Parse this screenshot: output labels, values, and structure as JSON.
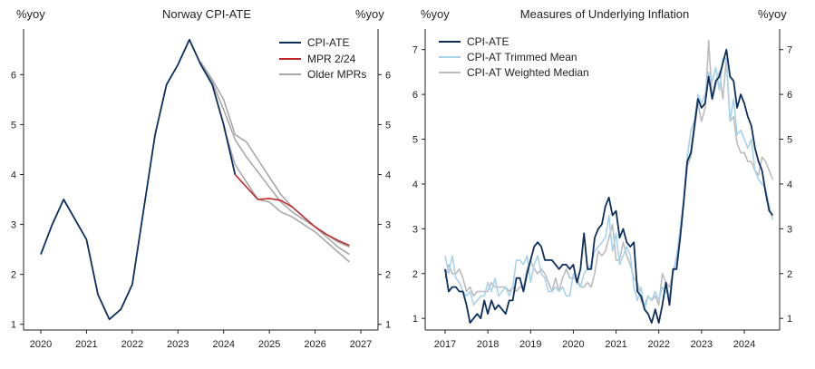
{
  "chart_data": [
    {
      "type": "line",
      "title": "Norway CPI-ATE",
      "ylabel_left": "%yoy",
      "ylabel_right": "%yoy",
      "xlim": [
        2020,
        2027
      ],
      "ylim": [
        0.85,
        6.95
      ],
      "yticks": [
        1,
        2,
        3,
        4,
        5,
        6
      ],
      "xticks": [
        2020,
        2021,
        2022,
        2023,
        2024,
        2025,
        2026,
        2027
      ],
      "legend_position": "top-right",
      "legend": [
        "CPI-ATE",
        "MPR 2/24",
        "Older MPRs"
      ],
      "colors": {
        "cpi_ate": "#0d2f5e",
        "mpr": "#c0282d",
        "older": "#a8a8a8"
      },
      "series": [
        {
          "name": "CPI-ATE",
          "color": "#0d2f5e",
          "x": [
            2020.0,
            2020.25,
            2020.5,
            2020.75,
            2021.0,
            2021.25,
            2021.5,
            2021.75,
            2022.0,
            2022.25,
            2022.5,
            2022.75,
            2023.0,
            2023.25,
            2023.5,
            2023.75,
            2024.0,
            2024.25
          ],
          "y": [
            2.4,
            3.0,
            3.5,
            3.1,
            2.7,
            1.6,
            1.1,
            1.3,
            1.8,
            3.3,
            4.8,
            5.8,
            6.2,
            6.7,
            6.2,
            5.8,
            5.0,
            4.0
          ]
        },
        {
          "name": "MPR 2/24",
          "color": "#c0282d",
          "x": [
            2024.25,
            2024.5,
            2024.75,
            2025.0,
            2025.25,
            2025.5,
            2025.75,
            2026.0,
            2026.25,
            2026.5,
            2026.75
          ],
          "y": [
            4.0,
            3.75,
            3.5,
            3.52,
            3.48,
            3.35,
            3.15,
            2.95,
            2.8,
            2.68,
            2.58
          ]
        },
        {
          "name": "Older MPRs",
          "color": "#a8a8a8",
          "x": [
            2023.5,
            2023.75,
            2024.0,
            2024.25,
            2024.5,
            2024.75,
            2025.0,
            2025.25,
            2025.5,
            2025.75,
            2026.0,
            2026.25,
            2026.5,
            2026.75
          ],
          "y": [
            6.25,
            5.9,
            5.5,
            4.8,
            4.65,
            4.3,
            3.95,
            3.6,
            3.35,
            3.15,
            2.95,
            2.8,
            2.65,
            2.55
          ]
        },
        {
          "name": "Older MPRs",
          "color": "#a8a8a8",
          "x": [
            2023.5,
            2023.75,
            2024.0,
            2024.25,
            2024.5,
            2024.75,
            2025.0,
            2025.25,
            2025.5,
            2025.75,
            2026.0,
            2026.25,
            2026.5,
            2026.75
          ],
          "y": [
            6.25,
            5.85,
            5.3,
            4.7,
            4.35,
            4.05,
            3.75,
            3.45,
            3.25,
            3.1,
            2.95,
            2.75,
            2.55,
            2.4
          ]
        },
        {
          "name": "Older MPRs",
          "color": "#a8a8a8",
          "x": [
            2024.0,
            2024.25,
            2024.5,
            2024.75,
            2025.0,
            2025.25,
            2025.5,
            2025.75,
            2026.0,
            2026.25,
            2026.5,
            2026.75
          ],
          "y": [
            4.95,
            4.2,
            3.85,
            3.5,
            3.45,
            3.25,
            3.15,
            3.0,
            2.85,
            2.65,
            2.45,
            2.25
          ]
        }
      ]
    },
    {
      "type": "line",
      "title": "Measures of Underlying Inflation",
      "ylabel_left": "%yoy",
      "ylabel_right": "%yoy",
      "xlim": [
        2016.8,
        2024.85
      ],
      "ylim": [
        0.7,
        7.5
      ],
      "yticks": [
        1,
        2,
        3,
        4,
        5,
        6,
        7
      ],
      "xticks": [
        2017,
        2018,
        2019,
        2020,
        2021,
        2022,
        2023,
        2024
      ],
      "legend_position": "top-left",
      "legend": [
        "CPI-ATE",
        "CPI-AT Trimmed Mean",
        "CPI-AT Weighted Median"
      ],
      "x_start": 2017.0,
      "x_step": 0.08333,
      "series": [
        {
          "name": "CPI-ATE",
          "color": "#0d2f5e",
          "values": [
            2.1,
            1.6,
            1.7,
            1.7,
            1.6,
            1.6,
            1.3,
            0.9,
            1.0,
            1.1,
            1.0,
            1.4,
            1.1,
            1.4,
            1.2,
            1.3,
            1.2,
            1.1,
            1.4,
            1.4,
            1.9,
            1.9,
            1.6,
            2.0,
            2.3,
            2.6,
            2.7,
            2.6,
            2.3,
            2.3,
            2.3,
            2.2,
            2.1,
            2.2,
            2.2,
            2.1,
            2.2,
            1.8,
            2.1,
            2.9,
            2.1,
            2.1,
            2.8,
            3.0,
            3.1,
            3.5,
            3.7,
            3.3,
            3.4,
            2.8,
            3.0,
            2.7,
            2.6,
            2.7,
            1.6,
            1.5,
            1.2,
            1.1,
            0.9,
            1.2,
            0.9,
            1.3,
            1.8,
            1.3,
            2.1,
            2.1,
            2.8,
            3.6,
            4.5,
            4.7,
            5.3,
            5.9,
            5.7,
            5.8,
            6.4,
            5.9,
            6.3,
            6.4,
            6.7,
            7.0,
            6.4,
            6.3,
            5.7,
            6.0,
            5.8,
            5.5,
            5.3,
            4.8,
            4.5,
            4.3,
            3.8,
            3.4,
            3.3
          ]
        },
        {
          "name": "CPI-AT Trimmed Mean",
          "color": "#a9d2ec",
          "values": [
            2.4,
            2.0,
            2.4,
            1.9,
            1.8,
            1.6,
            1.5,
            1.6,
            1.3,
            1.4,
            1.5,
            1.5,
            1.8,
            1.6,
            1.9,
            1.5,
            1.6,
            1.7,
            1.5,
            1.7,
            2.3,
            2.3,
            2.2,
            2.4,
            1.8,
            2.2,
            2.4,
            2.0,
            1.9,
            1.6,
            1.6,
            1.7,
            1.6,
            1.7,
            1.5,
            1.5,
            2.0,
            1.8,
            1.7,
            2.0,
            2.1,
            2.2,
            2.5,
            2.6,
            2.7,
            2.8,
            3.3,
            2.5,
            2.9,
            2.2,
            2.4,
            2.6,
            2.4,
            1.7,
            1.4,
            1.7,
            1.2,
            1.5,
            1.4,
            1.6,
            1.4,
            1.7,
            1.6,
            1.5,
            2.0,
            2.4,
            3.0,
            3.7,
            4.6,
            5.2,
            5.4,
            6.0,
            5.8,
            6.0,
            6.5,
            6.3,
            6.6,
            6.1,
            6.8,
            6.8,
            5.4,
            5.9,
            5.1,
            5.2,
            5.0,
            4.8,
            5.0,
            4.3,
            4.1,
            4.0,
            3.9,
            3.5,
            3.2
          ]
        },
        {
          "name": "CPI-AT Weighted Median",
          "color": "#bcbcbc",
          "values": [
            1.9,
            2.2,
            2.0,
            2.0,
            2.1,
            1.9,
            1.6,
            1.7,
            1.5,
            1.6,
            1.6,
            1.6,
            1.6,
            1.8,
            1.7,
            1.7,
            1.7,
            1.7,
            1.6,
            1.7,
            1.6,
            1.7,
            1.7,
            2.1,
            2.3,
            2.1,
            2.0,
            2.1,
            2.0,
            1.8,
            1.6,
            1.9,
            1.6,
            1.9,
            2.1,
            1.9,
            1.9,
            1.9,
            1.7,
            1.7,
            1.8,
            1.7,
            2.0,
            2.5,
            2.4,
            2.5,
            2.8,
            3.1,
            2.3,
            2.3,
            2.7,
            2.4,
            2.2,
            1.9,
            1.8,
            1.4,
            1.3,
            1.5,
            1.4,
            1.5,
            1.3,
            2.0,
            1.8,
            1.7,
            2.0,
            2.3,
            3.0,
            3.6,
            4.4,
            4.6,
            5.2,
            5.8,
            5.4,
            5.7,
            7.2,
            5.9,
            6.2,
            6.5,
            5.9,
            6.8,
            5.4,
            5.5,
            4.9,
            4.7,
            4.7,
            4.5,
            4.5,
            4.3,
            4.2,
            4.6,
            4.5,
            4.3,
            4.1
          ]
        }
      ]
    }
  ]
}
